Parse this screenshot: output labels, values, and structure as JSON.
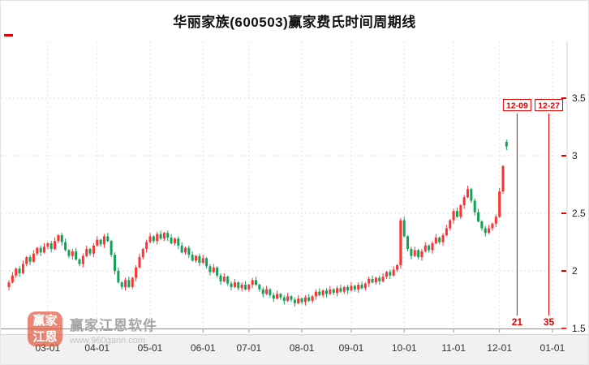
{
  "title": "华丽家族(600503)赢家费氏时间周期线",
  "watermark": {
    "logo_line1": "赢家",
    "logo_line2": "江恩",
    "name": "赢家江恩软件",
    "url": "www.960gann.com"
  },
  "chart_data": {
    "type": "candlestick",
    "title": "华丽家族(600503)赢家费氏时间周期线",
    "up_color": "#ff3232",
    "down_color": "#13a159",
    "annotation_color": "#e60000",
    "grid": true,
    "legend": "none",
    "price_axis": {
      "min": 1.5,
      "max": 3.5,
      "ticks": [
        3.5,
        3,
        2.5,
        2,
        1.5
      ]
    },
    "time_axis": {
      "labels": [
        "03-01",
        "04-01",
        "05-01",
        "06-01",
        "07-01",
        "08-01",
        "09-01",
        "10-01",
        "11-01",
        "12-01",
        "01-01"
      ],
      "label_slots": [
        11,
        25,
        40,
        55,
        68,
        83,
        97,
        112,
        126,
        139,
        154
      ],
      "total_slots": 158
    },
    "closes": [
      1.9,
      1.96,
      2.02,
      1.98,
      2.06,
      2.12,
      2.08,
      2.15,
      2.2,
      2.16,
      2.21,
      2.24,
      2.19,
      2.26,
      2.31,
      2.25,
      2.18,
      2.13,
      2.17,
      2.1,
      2.06,
      2.13,
      2.19,
      2.15,
      2.22,
      2.27,
      2.23,
      2.3,
      2.26,
      2.14,
      2.0,
      1.9,
      1.86,
      1.92,
      1.86,
      1.94,
      2.03,
      2.12,
      2.19,
      2.25,
      2.3,
      2.26,
      2.32,
      2.28,
      2.33,
      2.29,
      2.24,
      2.28,
      2.22,
      2.16,
      2.2,
      2.14,
      2.09,
      2.13,
      2.07,
      2.11,
      2.04,
      1.99,
      2.03,
      1.96,
      1.91,
      1.95,
      1.89,
      1.86,
      1.9,
      1.85,
      1.88,
      1.84,
      1.88,
      1.92,
      1.88,
      1.84,
      1.8,
      1.84,
      1.79,
      1.76,
      1.8,
      1.77,
      1.74,
      1.78,
      1.75,
      1.72,
      1.76,
      1.73,
      1.77,
      1.74,
      1.78,
      1.82,
      1.79,
      1.83,
      1.8,
      1.84,
      1.81,
      1.85,
      1.82,
      1.86,
      1.83,
      1.87,
      1.84,
      1.88,
      1.85,
      1.89,
      1.93,
      1.9,
      1.94,
      1.91,
      1.95,
      1.99,
      1.96,
      2.01,
      2.05,
      2.44,
      2.3,
      2.19,
      2.13,
      2.18,
      2.12,
      2.17,
      2.22,
      2.18,
      2.24,
      2.29,
      2.25,
      2.31,
      2.37,
      2.44,
      2.52,
      2.47,
      2.57,
      2.64,
      2.71,
      2.61,
      2.51,
      2.43,
      2.37,
      2.33,
      2.37,
      2.41,
      2.47,
      2.69,
      2.91,
      3.08
    ],
    "open_overrides": {
      "0": 1.86,
      "141": 3.12
    },
    "annotations": [
      {
        "label": "12-09",
        "count": "21",
        "slot": 144
      },
      {
        "label": "12-27",
        "count": "35",
        "slot": 153
      }
    ]
  }
}
